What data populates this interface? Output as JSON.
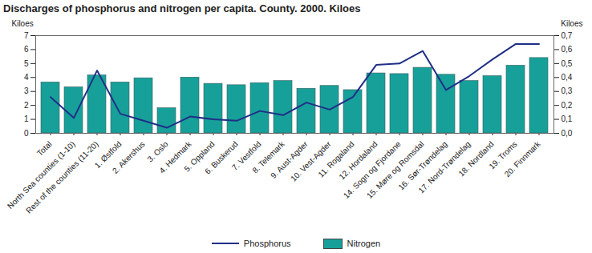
{
  "chart_data": {
    "type": "bar",
    "title": "Discharges of phosphorus and nitrogen per capita. County. 2000. Kiloes",
    "ylabel": "Kiloes",
    "y2label": "Kiloes",
    "categories": [
      "Total",
      "North Sea counties (1-10)",
      "Rest of the counties (11-20)",
      "1. Østfold",
      "2. Akershus",
      "3. Oslo",
      "4. Hedmark",
      "5. Oppland",
      "6. Buskerud",
      "7. Vestfold",
      "8. Telemark",
      "9. Aust-Agder",
      "10. Vest-Agder",
      "11. Rogaland",
      "12. Hordaland",
      "14. Sogn og Fjordane",
      "15. Møre og Romsdal",
      "16. Sør-Trøndelag",
      "17. Nord-Trøndelag",
      "18. Nordland",
      "19. Troms",
      "20. Finnmark"
    ],
    "series": [
      {
        "name": "Phosphorus",
        "type": "line",
        "axis": "y2",
        "color": "#1f2f86",
        "values": [
          0.26,
          0.11,
          0.45,
          0.14,
          0.09,
          0.04,
          0.12,
          0.1,
          0.09,
          0.16,
          0.13,
          0.22,
          0.17,
          0.26,
          0.49,
          0.5,
          0.59,
          0.31,
          0.41,
          0.53,
          0.64,
          0.64
        ]
      },
      {
        "name": "Nitrogen",
        "type": "bar",
        "color": "#17a09a",
        "values": [
          3.65,
          3.3,
          4.15,
          3.65,
          3.95,
          1.8,
          4.0,
          3.55,
          3.45,
          3.6,
          3.75,
          3.2,
          3.4,
          3.1,
          4.3,
          4.25,
          4.7,
          4.2,
          3.75,
          4.1,
          4.85,
          5.4
        ]
      }
    ],
    "ylim": [
      0,
      7
    ],
    "yticks": [
      0,
      1,
      2,
      3,
      4,
      5,
      6,
      7
    ],
    "y2lim": [
      0,
      0.7
    ],
    "y2ticks": [
      {
        "value": 0,
        "label": "0,0"
      },
      {
        "value": 0.1,
        "label": "0,1"
      },
      {
        "value": 0.2,
        "label": "0,2"
      },
      {
        "value": 0.3,
        "label": "0,3"
      },
      {
        "value": 0.4,
        "label": "0,4"
      },
      {
        "value": 0.5,
        "label": "0,5"
      },
      {
        "value": 0.6,
        "label": "0,6"
      },
      {
        "value": 0.7,
        "label": "0,7"
      }
    ],
    "grid": false,
    "legend": "bottom"
  }
}
